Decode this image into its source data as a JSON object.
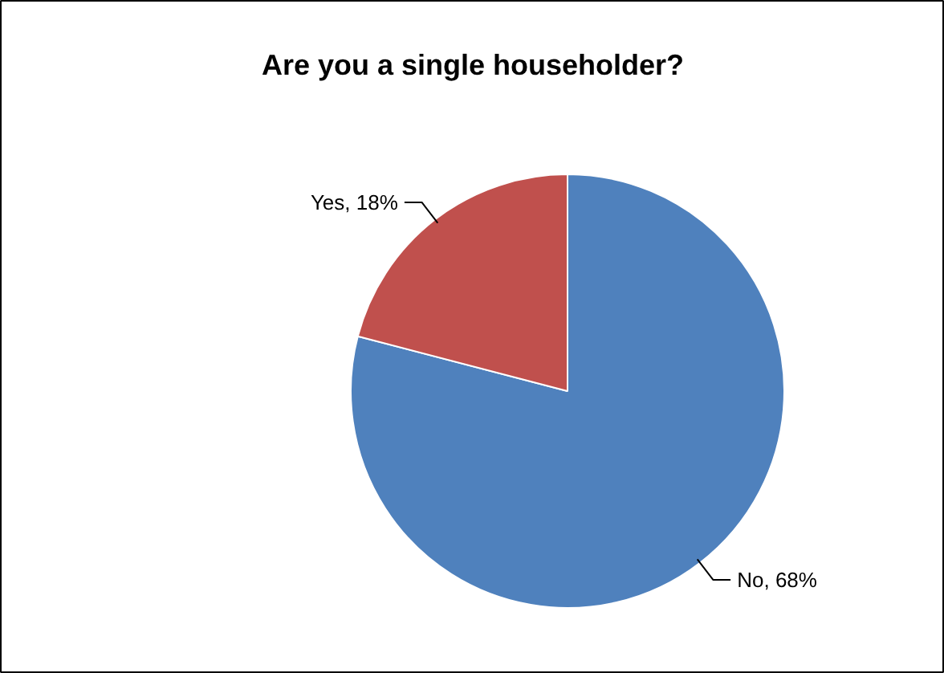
{
  "chart_data": {
    "type": "pie",
    "title": "Are you a single householder?",
    "categories": [
      "No",
      "Yes"
    ],
    "values": [
      68,
      18
    ],
    "colors": [
      "#4f81bd",
      "#c0504d"
    ],
    "value_labels": [
      "68%",
      "18%"
    ]
  }
}
